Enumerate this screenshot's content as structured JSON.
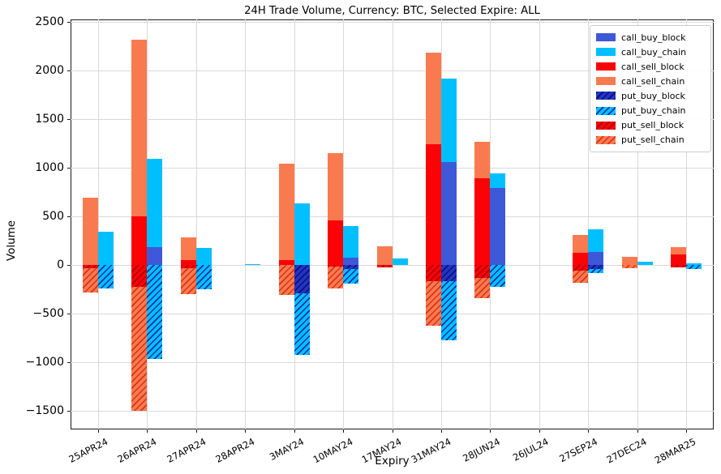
{
  "chart_data": {
    "type": "bar",
    "stacked": true,
    "title": "24H Trade Volume, Currency: BTC, Selected Expire: ALL",
    "xlabel": "Expiry",
    "ylabel": "Volume",
    "grid": true,
    "legend_position": "upper right",
    "ylim": [
      -1692,
      2525
    ],
    "yticks": [
      -1500,
      -1000,
      -500,
      0,
      500,
      1000,
      1500,
      2000,
      2500
    ],
    "categories": [
      "25APR24",
      "26APR24",
      "27APR24",
      "28APR24",
      "3MAY24",
      "10MAY24",
      "17MAY24",
      "31MAY24",
      "28JUN24",
      "26JUL24",
      "27SEP24",
      "27DEC24",
      "28MAR25"
    ],
    "series": [
      {
        "name": "call_buy_block",
        "side": "buy",
        "hatch": false,
        "color": "#3d59d8",
        "hatch_color": null,
        "values": [
          0,
          185,
          0,
          0,
          0,
          75,
          0,
          1060,
          790,
          0,
          130,
          0,
          0
        ]
      },
      {
        "name": "call_buy_chain",
        "side": "buy",
        "hatch": false,
        "color": "#00bfff",
        "hatch_color": null,
        "values": [
          340,
          910,
          175,
          10,
          635,
          325,
          65,
          860,
          150,
          0,
          240,
          35,
          20
        ]
      },
      {
        "name": "call_sell_block",
        "side": "sell",
        "hatch": false,
        "color": "#fb0207",
        "hatch_color": null,
        "values": [
          0,
          500,
          50,
          0,
          50,
          460,
          0,
          1240,
          890,
          0,
          125,
          0,
          110
        ]
      },
      {
        "name": "call_sell_chain",
        "side": "sell",
        "hatch": false,
        "color": "#fa7a50",
        "hatch_color": null,
        "values": [
          690,
          1820,
          235,
          0,
          990,
          690,
          190,
          940,
          375,
          0,
          185,
          85,
          75
        ]
      },
      {
        "name": "put_buy_block",
        "side": "buy",
        "hatch": true,
        "color": "#2334c4",
        "hatch_color": "#0a1178",
        "values": [
          0,
          0,
          0,
          0,
          -290,
          -40,
          0,
          -165,
          0,
          0,
          -40,
          0,
          0
        ]
      },
      {
        "name": "put_buy_chain",
        "side": "buy",
        "hatch": true,
        "color": "#00bfff",
        "hatch_color": "#0b2fa8",
        "values": [
          -240,
          -965,
          -250,
          0,
          -635,
          -150,
          0,
          -610,
          -225,
          0,
          -45,
          0,
          -45
        ]
      },
      {
        "name": "put_sell_block",
        "side": "sell",
        "hatch": true,
        "color": "#fb0207",
        "hatch_color": "#aa0108",
        "values": [
          -30,
          -225,
          -30,
          0,
          0,
          -20,
          -25,
          -165,
          -135,
          0,
          -60,
          0,
          -25
        ]
      },
      {
        "name": "put_sell_chain",
        "side": "sell",
        "hatch": true,
        "color": "#fa7a50",
        "hatch_color": "#d93315",
        "values": [
          -255,
          -1275,
          -270,
          0,
          -310,
          -220,
          0,
          -460,
          -205,
          0,
          -125,
          -35,
          0
        ]
      }
    ]
  }
}
